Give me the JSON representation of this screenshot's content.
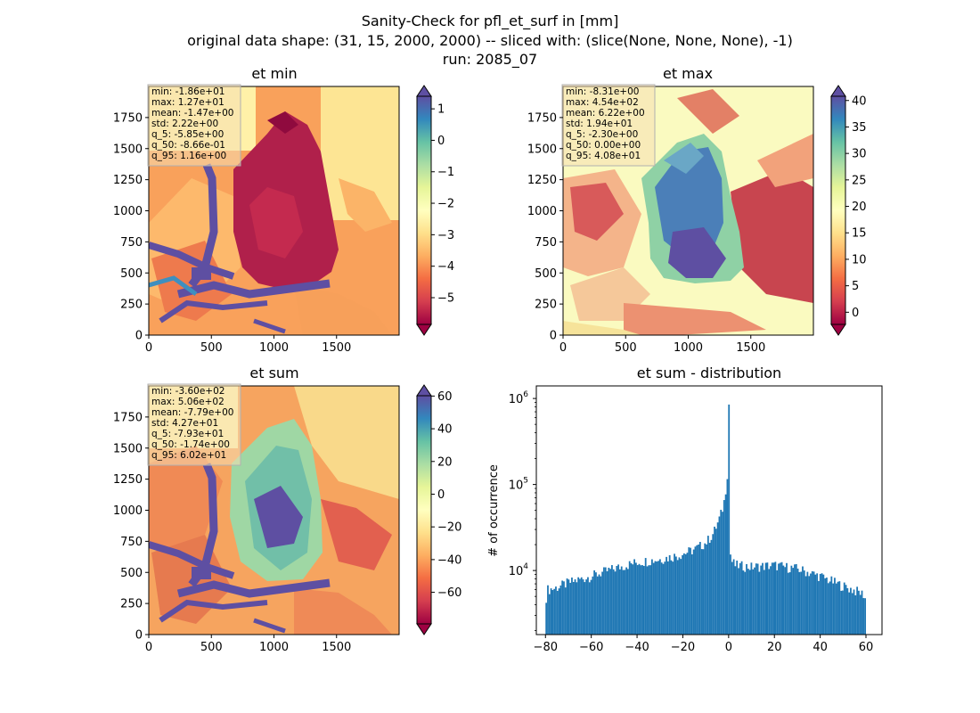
{
  "figure": {
    "title_lines": [
      "Sanity-Check for pfl_et_surf in [mm]",
      "original data shape: (31, 15, 2000, 2000) -- sliced with: (slice(None, None, None), -1)",
      "run: 2085_07"
    ]
  },
  "chart_data": [
    {
      "type": "heatmap",
      "title": "et min",
      "xticks": [
        0,
        500,
        1000,
        1500
      ],
      "yticks": [
        0,
        250,
        500,
        750,
        1000,
        1250,
        1500,
        1750
      ],
      "xlim": [
        0,
        2000
      ],
      "ylim": [
        0,
        2000
      ],
      "colormap": "Spectral",
      "colorbar": {
        "ticks": [
          1,
          0,
          -1,
          -2,
          -3,
          -4,
          -5
        ],
        "tick_labels": [
          "1",
          "0",
          "−1",
          "−2",
          "−3",
          "−4",
          "−5"
        ],
        "range": [
          -5.85,
          1.4
        ],
        "extend": "both"
      },
      "stats": [
        "min: -1.86e+01",
        "max: 1.27e+01",
        "mean: -1.47e+00",
        "std: 2.22e+00",
        "q_5: -5.85e+00",
        "q_50: -8.66e-01",
        "q_95: 1.16e+00"
      ]
    },
    {
      "type": "heatmap",
      "title": "et max",
      "xticks": [
        0,
        500,
        1000,
        1500
      ],
      "yticks": [
        0,
        250,
        500,
        750,
        1000,
        1250,
        1500,
        1750
      ],
      "xlim": [
        0,
        2000
      ],
      "ylim": [
        0,
        2000
      ],
      "colormap": "Spectral",
      "colorbar": {
        "ticks": [
          40,
          35,
          30,
          25,
          20,
          15,
          10,
          5,
          0
        ],
        "tick_labels": [
          "40",
          "35",
          "30",
          "25",
          "20",
          "15",
          "10",
          "5",
          "0"
        ],
        "range": [
          -2.3,
          40.8
        ],
        "extend": "both"
      },
      "stats": [
        "min: -8.31e+00",
        "max: 4.54e+02",
        "mean: 6.22e+00",
        "std: 1.94e+01",
        "q_5: -2.30e+00",
        "q_50: 0.00e+00",
        "q_95: 4.08e+01"
      ]
    },
    {
      "type": "heatmap",
      "title": "et sum",
      "xticks": [
        0,
        500,
        1000,
        1500
      ],
      "yticks": [
        0,
        250,
        500,
        750,
        1000,
        1250,
        1500,
        1750
      ],
      "xlim": [
        0,
        2000
      ],
      "ylim": [
        0,
        2000
      ],
      "colormap": "Spectral",
      "colorbar": {
        "ticks": [
          60,
          40,
          20,
          0,
          -20,
          -40,
          -60
        ],
        "tick_labels": [
          "60",
          "40",
          "20",
          "0",
          "−20",
          "−40",
          "−60"
        ],
        "range": [
          -79.3,
          60.2
        ],
        "extend": "both"
      },
      "stats": [
        "min: -3.60e+02",
        "max: 5.06e+02",
        "mean: -7.79e+00",
        "std: 4.27e+01",
        "q_5: -7.93e+01",
        "q_50: -1.74e+00",
        "q_95: 6.02e+01"
      ]
    },
    {
      "type": "bar",
      "title": "et sum - distribution",
      "ylabel": "# of occurrence",
      "xlabel": "",
      "yscale": "log",
      "xlim": [
        -84,
        67
      ],
      "ylim": [
        1800,
        1400000
      ],
      "xticks": [
        -80,
        -60,
        -40,
        -20,
        0,
        20,
        40,
        60
      ],
      "xtick_labels": [
        "−80",
        "−60",
        "−40",
        "−20",
        "0",
        "20",
        "40",
        "60"
      ],
      "yticks": [
        10000,
        100000,
        1000000
      ],
      "ytick_labels": [
        [
          "10",
          "4"
        ],
        [
          "10",
          "5"
        ],
        [
          "10",
          "6"
        ]
      ],
      "color": "#1f77b4",
      "bins": {
        "start": -80,
        "end": 60,
        "count": 200
      },
      "profile": [
        [
          -80,
          4000
        ],
        [
          -79.3,
          6000
        ],
        [
          -76,
          6200
        ],
        [
          -70,
          7200
        ],
        [
          -60,
          8600
        ],
        [
          -50,
          10500
        ],
        [
          -40,
          12500
        ],
        [
          -30,
          13500
        ],
        [
          -22,
          15000
        ],
        [
          -15,
          17500
        ],
        [
          -10,
          21000
        ],
        [
          -7,
          26000
        ],
        [
          -5,
          34000
        ],
        [
          -3,
          48000
        ],
        [
          -2,
          62000
        ],
        [
          -1.2,
          90000
        ],
        [
          -0.35,
          150000
        ],
        [
          0,
          850000
        ],
        [
          0.35,
          20000
        ],
        [
          1.2,
          13000
        ],
        [
          3,
          11500
        ],
        [
          10,
          11000
        ],
        [
          20,
          11500
        ],
        [
          30,
          10500
        ],
        [
          40,
          8600
        ],
        [
          50,
          6600
        ],
        [
          57,
          5600
        ],
        [
          59.5,
          5200
        ],
        [
          60,
          4000
        ]
      ]
    }
  ],
  "colors": {
    "hist_bar": "#1f77b4",
    "stats_box_fill": "#f5deb3",
    "spectral": [
      "#9e0142",
      "#d53e4f",
      "#f46d43",
      "#fdae61",
      "#fee08b",
      "#ffffbf",
      "#e6f598",
      "#abdda4",
      "#66c2a5",
      "#3288bd",
      "#5e4fa2"
    ]
  }
}
